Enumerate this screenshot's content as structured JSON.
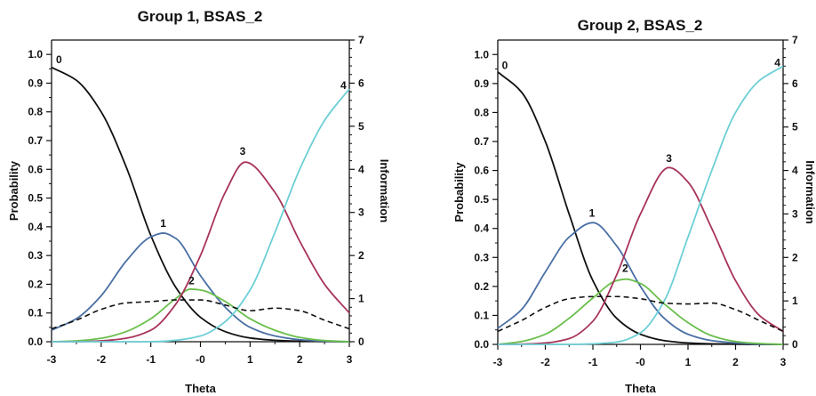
{
  "chart_data": [
    {
      "type": "line",
      "title": "Group 1, BSAS_2",
      "xlabel": "Theta",
      "ylabel": "Probability",
      "y2label": "Information",
      "xlim": [
        -3,
        3
      ],
      "ylim": [
        0,
        1.05
      ],
      "y2lim": [
        0,
        7
      ],
      "xticks": [
        -3,
        -2,
        -1,
        0,
        1,
        2,
        3
      ],
      "xtick_labels": [
        "-3",
        "-2",
        "-1",
        "-0",
        "1",
        "2",
        "3"
      ],
      "yticks": [
        0.0,
        0.1,
        0.2,
        0.3,
        0.4,
        0.5,
        0.6,
        0.7,
        0.8,
        0.9,
        1.0
      ],
      "ytick_labels": [
        "0.0",
        "0.1",
        "0.2",
        "0.3",
        "0.4",
        "0.5",
        "0.6",
        "0.7",
        "0.8",
        "0.9",
        "1.0"
      ],
      "y2ticks": [
        0,
        1,
        2,
        3,
        4,
        5,
        6,
        7
      ],
      "y2tick_labels": [
        "0",
        "1",
        "2",
        "3",
        "4",
        "5",
        "6",
        "7"
      ],
      "series": [
        {
          "name": "0",
          "color": "#111111",
          "dashed": false,
          "x": [
            -3,
            -2.5,
            -2,
            -1.5,
            -1,
            -0.5,
            0,
            0.5,
            1,
            1.5,
            2,
            2.5,
            3
          ],
          "y": [
            0.955,
            0.91,
            0.8,
            0.61,
            0.37,
            0.19,
            0.085,
            0.035,
            0.013,
            0.005,
            0.002,
            0.001,
            0.0
          ]
        },
        {
          "name": "1",
          "color": "#4a6fa5",
          "dashed": false,
          "x": [
            -3,
            -2.5,
            -2,
            -1.5,
            -1,
            -0.75,
            -0.5,
            0,
            0.5,
            1,
            1.5,
            2,
            2.5,
            3
          ],
          "y": [
            0.04,
            0.08,
            0.16,
            0.28,
            0.365,
            0.378,
            0.36,
            0.23,
            0.12,
            0.05,
            0.02,
            0.007,
            0.002,
            0.0
          ]
        },
        {
          "name": "2",
          "color": "#6abf4b",
          "dashed": false,
          "x": [
            -3,
            -2.5,
            -2,
            -1.5,
            -1,
            -0.5,
            -0.2,
            0,
            0.5,
            1,
            1.5,
            2,
            2.5,
            3
          ],
          "y": [
            0.0,
            0.003,
            0.012,
            0.035,
            0.08,
            0.15,
            0.183,
            0.18,
            0.14,
            0.08,
            0.04,
            0.015,
            0.004,
            0.0
          ]
        },
        {
          "name": "3",
          "color": "#a8345a",
          "dashed": false,
          "x": [
            -3,
            -2.5,
            -2,
            -1.5,
            -1,
            -0.5,
            0,
            0.5,
            0.9,
            1.5,
            2,
            2.5,
            3
          ],
          "y": [
            0.0,
            0.0,
            0.003,
            0.012,
            0.04,
            0.13,
            0.3,
            0.52,
            0.625,
            0.52,
            0.35,
            0.2,
            0.1
          ]
        },
        {
          "name": "4",
          "color": "#6dcfd6",
          "dashed": false,
          "x": [
            -3,
            -2.5,
            -2,
            -1.5,
            -1,
            -0.5,
            0,
            0.5,
            1,
            1.5,
            2,
            2.5,
            3
          ],
          "y": [
            0.0,
            0.0,
            0.0,
            0.0,
            0.0,
            0.005,
            0.02,
            0.07,
            0.18,
            0.38,
            0.6,
            0.77,
            0.88
          ]
        },
        {
          "name": "",
          "color": "#111111",
          "dashed": true,
          "axis": "information",
          "x": [
            -3,
            -2.5,
            -2,
            -1.5,
            -1,
            -0.5,
            0,
            0.5,
            1,
            1.5,
            2,
            2.5,
            3
          ],
          "y": [
            0.3,
            0.5,
            0.75,
            0.9,
            0.93,
            0.97,
            0.97,
            0.85,
            0.72,
            0.78,
            0.72,
            0.5,
            0.3
          ]
        }
      ],
      "curve_labels": [
        {
          "text": "0",
          "x": -2.85,
          "y": 0.97
        },
        {
          "text": "1",
          "x": -0.75,
          "y": 0.4
        },
        {
          "text": "2",
          "x": -0.18,
          "y": 0.2
        },
        {
          "text": "3",
          "x": 0.85,
          "y": 0.65
        },
        {
          "text": "4",
          "x": 2.88,
          "y": 0.88
        }
      ]
    },
    {
      "type": "line",
      "title": "Group 2, BSAS_2",
      "xlabel": "Theta",
      "ylabel": "Probability",
      "y2label": "Information",
      "xlim": [
        -3,
        3
      ],
      "ylim": [
        0,
        1.05
      ],
      "y2lim": [
        0,
        7
      ],
      "xticks": [
        -3,
        -2,
        -1,
        0,
        1,
        2,
        3
      ],
      "xtick_labels": [
        "-3",
        "-2",
        "-1",
        "-0",
        "1",
        "2",
        "3"
      ],
      "yticks": [
        0.0,
        0.1,
        0.2,
        0.3,
        0.4,
        0.5,
        0.6,
        0.7,
        0.8,
        0.9,
        1.0
      ],
      "ytick_labels": [
        "0.0",
        "0.1",
        "0.2",
        "0.3",
        "0.4",
        "0.5",
        "0.6",
        "0.7",
        "0.8",
        "0.9",
        "1.0"
      ],
      "y2ticks": [
        0,
        1,
        2,
        3,
        4,
        5,
        6,
        7
      ],
      "y2tick_labels": [
        "0",
        "1",
        "2",
        "3",
        "4",
        "5",
        "6",
        "7"
      ],
      "series": [
        {
          "name": "0",
          "color": "#111111",
          "dashed": false,
          "x": [
            -3,
            -2.5,
            -2,
            -1.5,
            -1,
            -0.5,
            0,
            0.5,
            1,
            1.5,
            2,
            2.5,
            3
          ],
          "y": [
            0.94,
            0.87,
            0.7,
            0.45,
            0.22,
            0.09,
            0.035,
            0.013,
            0.005,
            0.002,
            0.001,
            0.0,
            0.0
          ]
        },
        {
          "name": "1",
          "color": "#4a6fa5",
          "dashed": false,
          "x": [
            -3,
            -2.5,
            -2,
            -1.5,
            -1,
            -0.5,
            0,
            0.5,
            1,
            1.5,
            2,
            2.5,
            3
          ],
          "y": [
            0.055,
            0.12,
            0.25,
            0.37,
            0.42,
            0.34,
            0.2,
            0.09,
            0.035,
            0.013,
            0.005,
            0.001,
            0.0
          ]
        },
        {
          "name": "2",
          "color": "#6abf4b",
          "dashed": false,
          "x": [
            -3,
            -2.5,
            -2,
            -1.5,
            -1,
            -0.5,
            -0.3,
            0,
            0.5,
            1,
            1.5,
            2,
            2.5,
            3
          ],
          "y": [
            0.0,
            0.01,
            0.035,
            0.09,
            0.16,
            0.22,
            0.225,
            0.21,
            0.14,
            0.075,
            0.03,
            0.01,
            0.003,
            0.0
          ]
        },
        {
          "name": "3",
          "color": "#a8345a",
          "dashed": false,
          "x": [
            -3,
            -2.5,
            -2,
            -1.5,
            -1,
            -0.5,
            0,
            0.6,
            1,
            1.5,
            2,
            2.5,
            3
          ],
          "y": [
            0.0,
            0.001,
            0.005,
            0.02,
            0.08,
            0.24,
            0.45,
            0.61,
            0.56,
            0.4,
            0.22,
            0.1,
            0.045
          ]
        },
        {
          "name": "4",
          "color": "#6dcfd6",
          "dashed": false,
          "x": [
            -3,
            -2.5,
            -2,
            -1.5,
            -1,
            -0.5,
            0,
            0.5,
            1,
            1.5,
            2,
            2.5,
            3
          ],
          "y": [
            0.0,
            0.0,
            0.0,
            0.0,
            0.002,
            0.008,
            0.04,
            0.15,
            0.37,
            0.6,
            0.8,
            0.91,
            0.96
          ]
        },
        {
          "name": "",
          "color": "#111111",
          "dashed": true,
          "axis": "information",
          "x": [
            -3,
            -2.5,
            -2,
            -1.5,
            -1,
            -0.5,
            0,
            0.5,
            1,
            1.5,
            2,
            2.5,
            3
          ],
          "y": [
            0.3,
            0.55,
            0.85,
            1.05,
            1.1,
            1.1,
            1.05,
            0.95,
            0.93,
            0.95,
            0.8,
            0.55,
            0.3
          ]
        }
      ],
      "curve_labels": [
        {
          "text": "0",
          "x": -2.85,
          "y": 0.95
        },
        {
          "text": "1",
          "x": -1.02,
          "y": 0.44
        },
        {
          "text": "2",
          "x": -0.32,
          "y": 0.25
        },
        {
          "text": "3",
          "x": 0.6,
          "y": 0.63
        },
        {
          "text": "4",
          "x": 2.88,
          "y": 0.96
        }
      ]
    }
  ]
}
